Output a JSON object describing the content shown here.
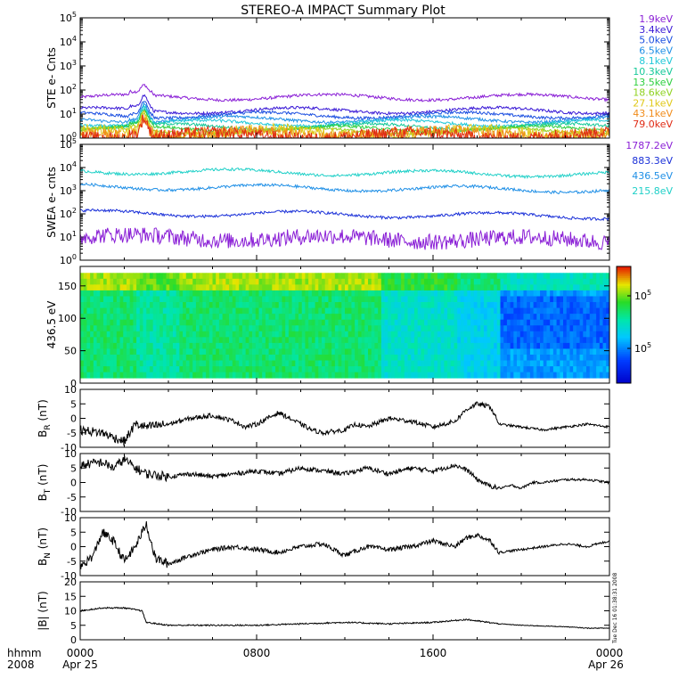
{
  "title": "STEREO-A IMPACT Summary Plot",
  "footer": {
    "left_unit": "hhmm",
    "left_year": "2008",
    "x_ticks": [
      "0000",
      "0800",
      "1600",
      "0000"
    ],
    "x_dates": [
      "Apr 25",
      "",
      "",
      "Apr 26"
    ]
  },
  "side_stamp": "Tue Dec 16 01:38:31 2008",
  "colors": {
    "axis": "#000000",
    "trace": "#000000",
    "background": "#ffffff"
  },
  "chart_data": [
    {
      "id": "ste",
      "type": "line",
      "ylabel": "STE e- Cnts",
      "yscale": "log",
      "ylim_exp": [
        0,
        5
      ],
      "ytick_labels": [
        "10^0",
        "10^1",
        "10^2",
        "10^3",
        "10^4",
        "10^5"
      ],
      "x_range_hours": [
        0,
        24
      ],
      "series": [
        {
          "name": "1.9keV",
          "color": "#8a1fd6",
          "level": 50,
          "spike": 110
        },
        {
          "name": "3.4keV",
          "color": "#3a1ad6",
          "level": 14,
          "spike": 45
        },
        {
          "name": "5.0keV",
          "color": "#1a4ee0",
          "level": 9,
          "spike": 30
        },
        {
          "name": "6.5keV",
          "color": "#1f8fe6",
          "level": 6,
          "spike": 22
        },
        {
          "name": "8.1keV",
          "color": "#20c8d8",
          "level": 4.2,
          "spike": 16
        },
        {
          "name": "10.3keV",
          "color": "#16c99a",
          "level": 3.0,
          "spike": 12
        },
        {
          "name": "13.5keV",
          "color": "#2fd040",
          "level": 2.4,
          "spike": 10
        },
        {
          "name": "18.6keV",
          "color": "#8fd21f",
          "level": 2.0,
          "spike": 8
        },
        {
          "name": "27.1keV",
          "color": "#e0c819",
          "level": 1.7,
          "spike": 7
        },
        {
          "name": "43.1keV",
          "color": "#f08c1a",
          "level": 1.5,
          "spike": 6
        },
        {
          "name": "79.0keV",
          "color": "#e02a14",
          "level": 1.3,
          "spike": 5
        }
      ]
    },
    {
      "id": "swea",
      "type": "line",
      "ylabel": "SWEA e- cnts",
      "yscale": "log",
      "ylim_exp": [
        0,
        5
      ],
      "ytick_labels": [
        "10^0",
        "10^1",
        "10^2",
        "10^3",
        "10^4",
        "10^5"
      ],
      "x_range_hours": [
        0,
        24
      ],
      "series": [
        {
          "name": "1787.2eV",
          "color": "#8a1fd6",
          "level": 10
        },
        {
          "name": "883.3eV",
          "color": "#1a30d8",
          "level": 110
        },
        {
          "name": "436.5eV",
          "color": "#1f8fe6",
          "level": 1500
        },
        {
          "name": "215.8eV",
          "color": "#20d0c8",
          "level": 7000
        }
      ]
    },
    {
      "id": "pad",
      "type": "heatmap",
      "ylabel": "436.5 eV",
      "ylim": [
        0,
        180
      ],
      "yticks": [
        0,
        50,
        100,
        150
      ],
      "x_range_hours": [
        0,
        24
      ],
      "colorbar_ticks": [
        "10^5",
        "10^5"
      ]
    },
    {
      "id": "br",
      "type": "line",
      "ylabel": "B_R (nT)",
      "ylabel_main": "B",
      "ylabel_sub": "R",
      "ylabel_unit": "(nT)",
      "ylim": [
        -10,
        10
      ],
      "yticks": [
        -10,
        -5,
        0,
        5,
        10
      ],
      "x_range_hours": [
        0,
        24
      ],
      "keypoints": [
        [
          0,
          -4
        ],
        [
          1,
          -5
        ],
        [
          2,
          -8
        ],
        [
          2.5,
          -2
        ],
        [
          3,
          -3
        ],
        [
          4,
          -2
        ],
        [
          5,
          0
        ],
        [
          6,
          1
        ],
        [
          7,
          -1
        ],
        [
          7.5,
          -3
        ],
        [
          8,
          -2
        ],
        [
          9,
          2
        ],
        [
          10,
          -2
        ],
        [
          10.5,
          -4
        ],
        [
          11,
          -5
        ],
        [
          12,
          -4
        ],
        [
          12.5,
          -2
        ],
        [
          13,
          -3
        ],
        [
          14,
          0
        ],
        [
          15,
          -1
        ],
        [
          16,
          -3
        ],
        [
          17,
          -1
        ],
        [
          17.5,
          3
        ],
        [
          18,
          5
        ],
        [
          18.6,
          4
        ],
        [
          19,
          -2
        ],
        [
          20,
          -3
        ],
        [
          21,
          -4
        ],
        [
          22,
          -3
        ],
        [
          23,
          -2
        ],
        [
          24,
          -3
        ]
      ]
    },
    {
      "id": "bt",
      "type": "line",
      "ylabel": "B_T (nT)",
      "ylabel_main": "B",
      "ylabel_sub": "T",
      "ylabel_unit": "(nT)",
      "ylim": [
        -10,
        10
      ],
      "yticks": [
        -10,
        -5,
        0,
        5,
        10
      ],
      "x_range_hours": [
        0,
        24
      ],
      "keypoints": [
        [
          0,
          6
        ],
        [
          1,
          7
        ],
        [
          1.5,
          5
        ],
        [
          2,
          8
        ],
        [
          2.5,
          5
        ],
        [
          3,
          3
        ],
        [
          4,
          2
        ],
        [
          5,
          3
        ],
        [
          6,
          2
        ],
        [
          7,
          3
        ],
        [
          8,
          4
        ],
        [
          9,
          3
        ],
        [
          10,
          5
        ],
        [
          11,
          4
        ],
        [
          12,
          3
        ],
        [
          13,
          5
        ],
        [
          14,
          3
        ],
        [
          15,
          5
        ],
        [
          16,
          4
        ],
        [
          17,
          6
        ],
        [
          17.6,
          4
        ],
        [
          18,
          1
        ],
        [
          18.5,
          -1
        ],
        [
          19,
          -2
        ],
        [
          19.6,
          -1
        ],
        [
          20,
          -2
        ],
        [
          20.5,
          0
        ],
        [
          21,
          0
        ],
        [
          22,
          1
        ],
        [
          23,
          1
        ],
        [
          24,
          0
        ]
      ]
    },
    {
      "id": "bn",
      "type": "line",
      "ylabel": "B_N (nT)",
      "ylabel_main": "B",
      "ylabel_sub": "N",
      "ylabel_unit": "(nT)",
      "ylim": [
        -10,
        10
      ],
      "yticks": [
        -10,
        -5,
        0,
        5,
        10
      ],
      "x_range_hours": [
        0,
        24
      ],
      "keypoints": [
        [
          0,
          -7
        ],
        [
          0.6,
          -3
        ],
        [
          1,
          5
        ],
        [
          1.5,
          2
        ],
        [
          2,
          -5
        ],
        [
          2.5,
          0
        ],
        [
          3,
          8
        ],
        [
          3.4,
          -4
        ],
        [
          4,
          -6
        ],
        [
          5,
          -3
        ],
        [
          6,
          -1
        ],
        [
          7,
          0
        ],
        [
          8,
          -1
        ],
        [
          9,
          -2
        ],
        [
          10,
          0
        ],
        [
          11,
          1
        ],
        [
          12,
          -3
        ],
        [
          13,
          0
        ],
        [
          14,
          -1
        ],
        [
          15,
          0
        ],
        [
          16,
          2
        ],
        [
          17,
          0
        ],
        [
          17.5,
          3
        ],
        [
          18,
          4
        ],
        [
          18.6,
          2
        ],
        [
          19,
          -2
        ],
        [
          20,
          -1
        ],
        [
          21,
          0
        ],
        [
          22,
          1
        ],
        [
          23,
          0
        ],
        [
          24,
          2
        ]
      ]
    },
    {
      "id": "bmag",
      "type": "line",
      "ylabel": "|B| (nT)",
      "ylim": [
        0,
        20
      ],
      "yticks": [
        0,
        5,
        10,
        15,
        20
      ],
      "x_range_hours": [
        0,
        24
      ],
      "keypoints": [
        [
          0,
          10
        ],
        [
          1,
          11
        ],
        [
          2,
          11
        ],
        [
          2.8,
          10
        ],
        [
          3,
          6
        ],
        [
          4,
          5
        ],
        [
          6,
          5
        ],
        [
          8,
          5
        ],
        [
          10,
          5.5
        ],
        [
          12,
          6
        ],
        [
          14,
          5.5
        ],
        [
          16,
          6
        ],
        [
          17.5,
          7
        ],
        [
          18,
          6.5
        ],
        [
          19,
          5.5
        ],
        [
          20,
          5
        ],
        [
          22,
          4.5
        ],
        [
          23,
          4
        ],
        [
          24,
          4
        ]
      ]
    }
  ]
}
